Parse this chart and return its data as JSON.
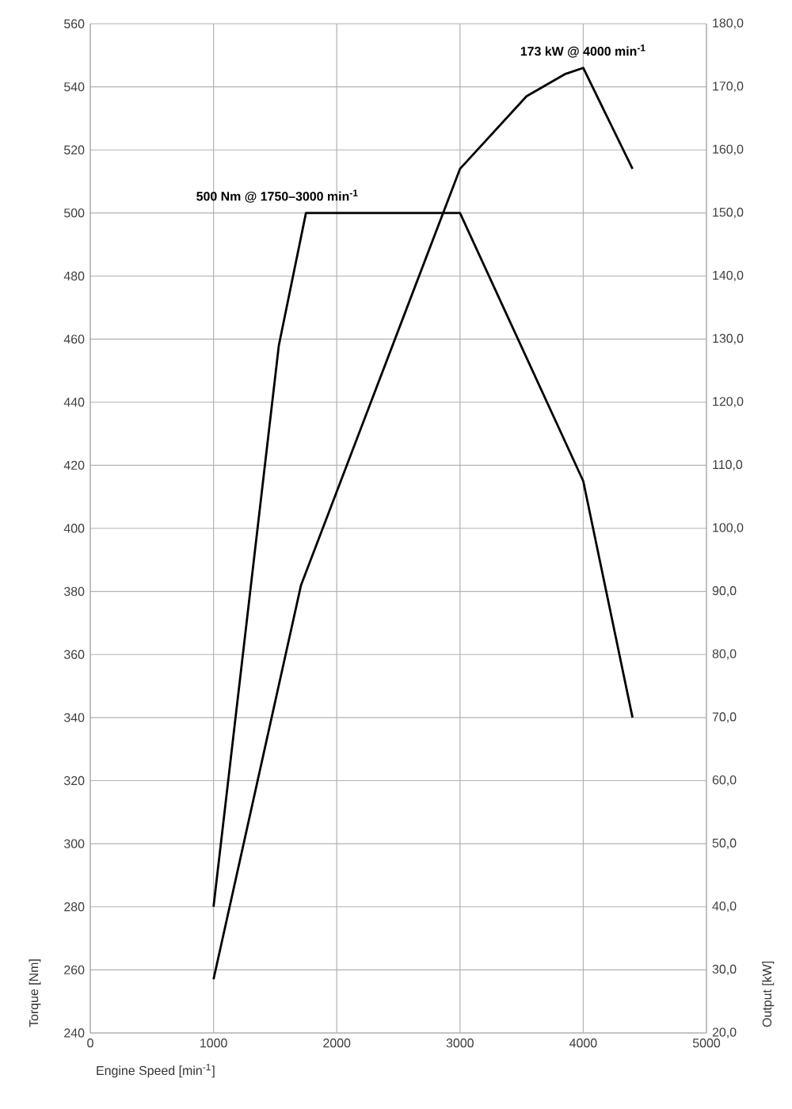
{
  "chart_data": {
    "type": "line",
    "xlabel": "Engine Speed [min$^{-1}$]",
    "ylabel": "Torque [Nm]",
    "y2label": "Output [kW]",
    "annotations": [
      "500 Nm @ 1750–3000 min$^{-1}$",
      "173 kW @ 4000  min$^{-1}$"
    ],
    "series": [
      {
        "color": "#000000",
        "x": [
          1000,
          1530,
          1750,
          3000,
          4000,
          4400
        ],
        "values": [
          280,
          458,
          500,
          500,
          415,
          340
        ]
      },
      {
        "color": "#000000",
        "axis": "y2",
        "x": [
          1000,
          1710,
          3000,
          3540,
          3850,
          4000,
          4400
        ],
        "values": [
          28.5,
          91,
          157,
          168.5,
          172,
          173,
          157
        ]
      }
    ],
    "xlim": [
      0,
      5000
    ],
    "xticks": [
      0,
      1000,
      2000,
      3000,
      4000,
      5000
    ],
    "ylim": [
      240,
      560
    ],
    "yticks": [
      240,
      260,
      280,
      300,
      320,
      340,
      360,
      380,
      400,
      420,
      440,
      460,
      480,
      500,
      520,
      540,
      560
    ],
    "y2lim": [
      20,
      180
    ],
    "y2ticks": [
      {
        "value": 20,
        "label": "20,0"
      },
      {
        "value": 30,
        "label": "30,0"
      },
      {
        "value": 40,
        "label": "40,0"
      },
      {
        "value": 50,
        "label": "50,0"
      },
      {
        "value": 60,
        "label": "60,0"
      },
      {
        "value": 70,
        "label": "70,0"
      },
      {
        "value": 80,
        "label": "80,0"
      },
      {
        "value": 90,
        "label": "90,0"
      },
      {
        "value": 100,
        "label": "100,0"
      },
      {
        "value": 110,
        "label": "110,0"
      },
      {
        "value": 120,
        "label": "120,0"
      },
      {
        "value": 130,
        "label": "130,0"
      },
      {
        "value": 140,
        "label": "140,0"
      },
      {
        "value": 150,
        "label": "150,0"
      },
      {
        "value": 160,
        "label": "160,0"
      },
      {
        "value": 170,
        "label": "170,0"
      },
      {
        "value": 180,
        "label": "180,0"
      }
    ],
    "grid": true,
    "line_style": "solid"
  }
}
